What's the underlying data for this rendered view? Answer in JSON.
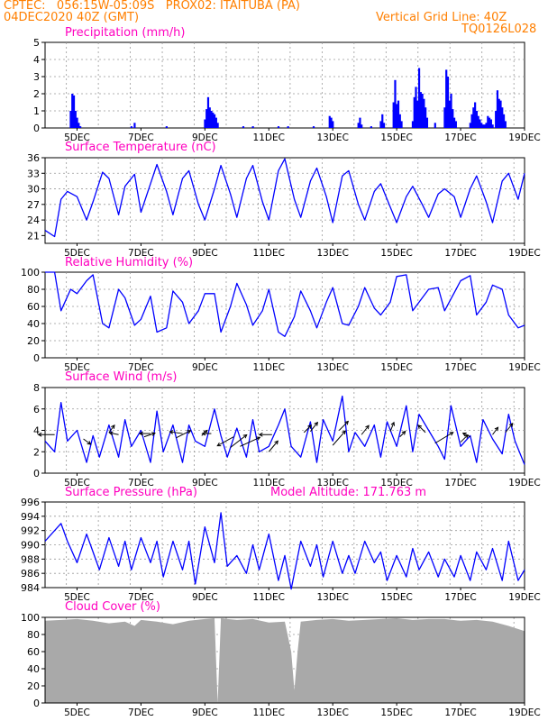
{
  "header": {
    "line1": "CPTEC:   056:15W-05:09S   PROX02: ITAITUBA (PA)",
    "date": "04DEC2020 40Z (GMT)",
    "vgrid": "Vertical Grid Line: 40Z",
    "code": "TQ0126L028"
  },
  "colors": {
    "header": "#ff7f00",
    "title": "#ff00bf",
    "line": "#0000ff",
    "bar": "#0000ff",
    "cloud": "#a9a9a9"
  },
  "chart_data": [
    {
      "type": "bar",
      "title": "Precipitation (mm/h)",
      "ylim": [
        0,
        5
      ],
      "yticks": [
        "0",
        "1",
        "2",
        "3",
        "4",
        "5"
      ],
      "xticks": [
        "5DEC",
        "7DEC",
        "9DEC",
        "11DEC",
        "13DEC",
        "15DEC",
        "17DEC",
        "19DEC"
      ],
      "x": [
        4.8,
        4.85,
        4.9,
        4.95,
        5.0,
        5.05,
        5.1,
        6.7,
        6.8,
        7.8,
        9.0,
        9.05,
        9.1,
        9.15,
        9.2,
        9.25,
        9.3,
        9.35,
        9.4,
        10.2,
        10.5,
        11.3,
        11.6,
        12.4,
        12.9,
        12.95,
        13.0,
        13.8,
        13.85,
        13.9,
        14.2,
        14.5,
        14.55,
        14.6,
        14.9,
        14.95,
        15.0,
        15.05,
        15.1,
        15.15,
        15.5,
        15.55,
        15.6,
        15.65,
        15.7,
        15.75,
        15.8,
        15.85,
        15.9,
        15.95,
        16.2,
        16.5,
        16.55,
        16.6,
        16.65,
        16.7,
        16.75,
        16.8,
        16.85,
        17.3,
        17.35,
        17.4,
        17.45,
        17.5,
        17.55,
        17.6,
        17.65,
        17.7,
        17.75,
        17.8,
        17.85,
        17.9,
        17.95,
        18.0,
        18.1,
        18.15,
        18.2,
        18.25,
        18.3,
        18.35,
        18.4
      ],
      "values": [
        1.0,
        2.0,
        1.9,
        1.0,
        0.6,
        0.3,
        0.1,
        0.1,
        0.3,
        0.1,
        0.5,
        1.1,
        1.8,
        1.2,
        1.0,
        0.9,
        0.8,
        0.6,
        0.3,
        0.1,
        0.1,
        0.1,
        0.1,
        0.1,
        0.7,
        0.6,
        0.4,
        0.3,
        0.6,
        0.2,
        0.1,
        0.4,
        0.8,
        0.3,
        1.5,
        2.8,
        1.4,
        1.6,
        0.8,
        0.4,
        0.4,
        1.8,
        2.4,
        1.6,
        3.5,
        2.1,
        2.0,
        1.7,
        1.2,
        0.6,
        0.3,
        1.2,
        3.4,
        3.0,
        1.6,
        2.0,
        1.1,
        0.6,
        0.4,
        0.3,
        0.8,
        1.2,
        1.5,
        1.0,
        0.7,
        0.5,
        0.3,
        0.2,
        0.2,
        0.3,
        0.7,
        0.6,
        0.5,
        0.2,
        1.0,
        2.2,
        1.7,
        1.6,
        1.2,
        0.8,
        0.4
      ]
    },
    {
      "type": "line",
      "title": "Surface Temperature (nC)",
      "ylim": [
        19.5,
        36
      ],
      "yticks": [
        "21",
        "24",
        "27",
        "30",
        "33",
        "36"
      ],
      "xticks": [
        "5DEC",
        "7DEC",
        "9DEC",
        "11DEC",
        "13DEC",
        "15DEC",
        "17DEC",
        "19DEC"
      ],
      "x": [
        4.0,
        4.3,
        4.5,
        4.7,
        5.0,
        5.3,
        5.5,
        5.8,
        6.0,
        6.3,
        6.5,
        6.8,
        7.0,
        7.3,
        7.5,
        7.8,
        8.0,
        8.3,
        8.5,
        8.8,
        9.0,
        9.3,
        9.5,
        9.8,
        10.0,
        10.3,
        10.5,
        10.8,
        11.0,
        11.3,
        11.5,
        11.8,
        12.0,
        12.3,
        12.5,
        12.8,
        13.0,
        13.3,
        13.5,
        13.8,
        14.0,
        14.3,
        14.5,
        14.8,
        15.0,
        15.3,
        15.5,
        15.8,
        16.0,
        16.3,
        16.5,
        16.8,
        17.0,
        17.3,
        17.5,
        17.8,
        18.0,
        18.3,
        18.5,
        18.8,
        19.0
      ],
      "values": [
        22.0,
        20.8,
        28.0,
        29.5,
        28.5,
        24.0,
        27.5,
        33.2,
        32.0,
        25.0,
        30.5,
        32.8,
        25.5,
        31.0,
        34.7,
        29.5,
        25.0,
        32.0,
        33.5,
        27.0,
        24.0,
        30.0,
        34.5,
        29.0,
        24.5,
        32.0,
        34.5,
        27.5,
        24.0,
        33.5,
        35.8,
        28.0,
        24.5,
        31.5,
        34.0,
        28.5,
        23.5,
        32.5,
        33.5,
        27.0,
        24.0,
        29.5,
        31.0,
        26.5,
        23.5,
        28.5,
        30.5,
        27.0,
        24.5,
        29.0,
        30.0,
        28.5,
        24.5,
        30.0,
        32.5,
        27.5,
        23.5,
        31.5,
        33.0,
        28.0,
        33.0
      ]
    },
    {
      "type": "line",
      "title": "Relative Humidity (%)",
      "ylim": [
        0,
        100
      ],
      "yticks": [
        "0",
        "20",
        "40",
        "60",
        "80",
        "100"
      ],
      "xticks": [
        "5DEC",
        "7DEC",
        "9DEC",
        "11DEC",
        "13DEC",
        "15DEC",
        "17DEC",
        "19DEC"
      ],
      "x": [
        4.0,
        4.3,
        4.5,
        4.8,
        5.0,
        5.3,
        5.5,
        5.8,
        6.0,
        6.3,
        6.5,
        6.8,
        7.0,
        7.3,
        7.5,
        7.8,
        8.0,
        8.3,
        8.5,
        8.8,
        9.0,
        9.3,
        9.5,
        9.8,
        10.0,
        10.3,
        10.5,
        10.8,
        11.0,
        11.3,
        11.5,
        11.8,
        12.0,
        12.3,
        12.5,
        12.8,
        13.0,
        13.3,
        13.5,
        13.8,
        14.0,
        14.3,
        14.5,
        14.8,
        15.0,
        15.3,
        15.5,
        15.8,
        16.0,
        16.3,
        16.5,
        16.8,
        17.0,
        17.3,
        17.5,
        17.8,
        18.0,
        18.3,
        18.5,
        18.8,
        19.0
      ],
      "values": [
        100.0,
        100.0,
        55.0,
        80.0,
        75.0,
        90.0,
        97.0,
        40.0,
        35.0,
        80.0,
        70.0,
        38.0,
        45.0,
        72.0,
        30.0,
        35.0,
        78.0,
        65.0,
        40.0,
        55.0,
        75.0,
        75.0,
        30.0,
        60.0,
        87.0,
        62.0,
        38.0,
        55.0,
        80.0,
        30.0,
        25.0,
        48.0,
        78.0,
        55.0,
        35.0,
        65.0,
        82.0,
        40.0,
        38.0,
        60.0,
        82.0,
        58.0,
        50.0,
        65.0,
        95.0,
        97.0,
        55.0,
        70.0,
        80.0,
        82.0,
        55.0,
        76.0,
        90.0,
        96.0,
        50.0,
        65.0,
        85.0,
        80.0,
        50.0,
        35.0,
        38.0
      ]
    },
    {
      "type": "line",
      "title": "Surface Wind (m/s)",
      "ylim": [
        0,
        8
      ],
      "yticks": [
        "0",
        "2",
        "4",
        "6",
        "8"
      ],
      "xticks": [
        "5DEC",
        "7DEC",
        "9DEC",
        "11DEC",
        "13DEC",
        "15DEC",
        "17DEC",
        "19DEC"
      ],
      "x": [
        4.0,
        4.3,
        4.5,
        4.7,
        5.0,
        5.3,
        5.5,
        5.7,
        6.0,
        6.3,
        6.5,
        6.7,
        7.0,
        7.3,
        7.5,
        7.7,
        8.0,
        8.3,
        8.5,
        8.7,
        9.0,
        9.3,
        9.5,
        9.7,
        10.0,
        10.3,
        10.5,
        10.7,
        11.0,
        11.3,
        11.5,
        11.7,
        12.0,
        12.3,
        12.5,
        12.7,
        13.0,
        13.3,
        13.5,
        13.7,
        14.0,
        14.3,
        14.5,
        14.7,
        15.0,
        15.3,
        15.5,
        15.7,
        16.0,
        16.3,
        16.5,
        16.7,
        17.0,
        17.3,
        17.5,
        17.7,
        18.0,
        18.3,
        18.5,
        18.7,
        19.0
      ],
      "values": [
        3.0,
        2.0,
        6.6,
        3.0,
        4.0,
        1.0,
        3.5,
        1.5,
        4.5,
        1.5,
        5.0,
        2.5,
        4.0,
        1.0,
        5.8,
        2.0,
        4.5,
        1.0,
        4.5,
        3.0,
        2.5,
        6.0,
        3.5,
        1.5,
        4.2,
        1.5,
        5.0,
        2.0,
        2.5,
        4.5,
        6.0,
        2.5,
        1.5,
        4.8,
        1.0,
        5.0,
        3.0,
        7.2,
        2.0,
        3.8,
        2.5,
        4.5,
        1.5,
        4.8,
        2.5,
        6.3,
        2.0,
        5.5,
        4.0,
        2.5,
        1.3,
        6.3,
        2.5,
        3.5,
        1.0,
        5.0,
        3.2,
        1.8,
        5.5,
        3.0,
        0.8
      ]
    },
    {
      "type": "line",
      "title": "Surface Pressure (hPa)",
      "annotation": "Model Altitude: 171.763 m",
      "ylim": [
        984,
        996
      ],
      "yticks": [
        "984",
        "986",
        "988",
        "990",
        "992",
        "994",
        "996"
      ],
      "xticks": [
        "5DEC",
        "7DEC",
        "9DEC",
        "11DEC",
        "13DEC",
        "15DEC",
        "17DEC",
        "19DEC"
      ],
      "x": [
        4.0,
        4.3,
        4.5,
        4.7,
        5.0,
        5.3,
        5.5,
        5.7,
        6.0,
        6.3,
        6.5,
        6.7,
        7.0,
        7.3,
        7.5,
        7.7,
        8.0,
        8.3,
        8.5,
        8.7,
        9.0,
        9.3,
        9.5,
        9.7,
        10.0,
        10.3,
        10.5,
        10.7,
        11.0,
        11.3,
        11.5,
        11.7,
        12.0,
        12.3,
        12.5,
        12.7,
        13.0,
        13.3,
        13.5,
        13.7,
        14.0,
        14.3,
        14.5,
        14.7,
        15.0,
        15.3,
        15.5,
        15.7,
        16.0,
        16.3,
        16.5,
        16.8,
        17.0,
        17.3,
        17.5,
        17.8,
        18.0,
        18.3,
        18.5,
        18.8,
        19.0
      ],
      "values": [
        990.5,
        992.0,
        993.0,
        990.5,
        987.5,
        991.5,
        989.0,
        986.5,
        991.0,
        987.0,
        990.5,
        986.5,
        991.0,
        987.5,
        990.5,
        985.5,
        990.5,
        986.5,
        990.5,
        984.5,
        992.5,
        987.5,
        994.5,
        987.0,
        988.5,
        986.0,
        990.0,
        986.5,
        991.5,
        985.0,
        988.5,
        983.8,
        990.5,
        987.0,
        990.0,
        985.5,
        990.5,
        986.0,
        988.5,
        986.0,
        990.5,
        987.5,
        989.0,
        985.0,
        988.5,
        985.5,
        989.5,
        986.5,
        989.0,
        985.5,
        988.0,
        985.5,
        988.5,
        985.0,
        989.0,
        986.5,
        989.5,
        985.0,
        990.5,
        985.0,
        986.5
      ]
    },
    {
      "type": "area",
      "title": "Cloud Cover (%)",
      "ylim": [
        0,
        100
      ],
      "yticks": [
        "0",
        "20",
        "40",
        "60",
        "80",
        "100"
      ],
      "xticks": [
        "5DEC",
        "7DEC",
        "9DEC",
        "11DEC",
        "13DEC",
        "15DEC",
        "17DEC",
        "19DEC"
      ],
      "x": [
        4.0,
        4.5,
        5.0,
        5.5,
        6.0,
        6.5,
        6.8,
        7.0,
        7.5,
        8.0,
        8.5,
        9.0,
        9.3,
        9.4,
        9.5,
        10.0,
        10.5,
        11.0,
        11.5,
        11.7,
        11.8,
        11.9,
        12.0,
        12.5,
        13.0,
        13.5,
        14.0,
        14.5,
        15.0,
        15.5,
        16.0,
        16.5,
        17.0,
        17.5,
        18.0,
        18.5,
        19.0
      ],
      "values": [
        96,
        97,
        98,
        96,
        93,
        95,
        90,
        97,
        95,
        92,
        96,
        98,
        99,
        0,
        99,
        97,
        98,
        94,
        95,
        60,
        15,
        60,
        95,
        97,
        98,
        96,
        97,
        98,
        99,
        97,
        98,
        98,
        96,
        97,
        95,
        90,
        84
      ]
    }
  ]
}
